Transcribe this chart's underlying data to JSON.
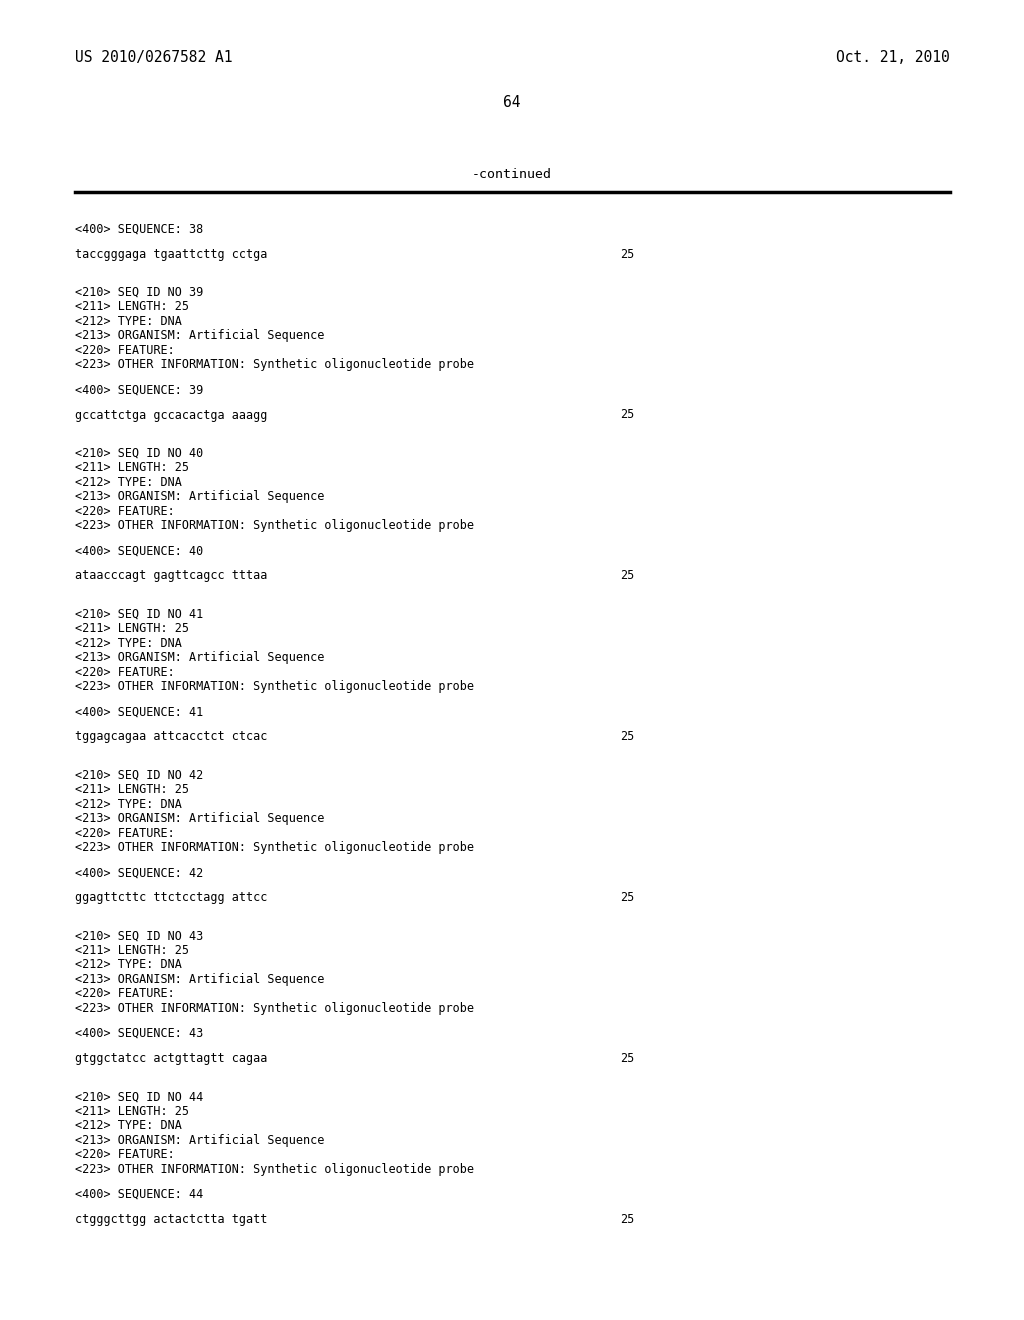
{
  "background_color": "#ffffff",
  "top_left_text": "US 2010/0267582 A1",
  "top_right_text": "Oct. 21, 2010",
  "page_number": "64",
  "continued_text": "-continued",
  "font_size_header": 10.5,
  "font_size_body": 8.5,
  "font_size_page": 10.5,
  "font_size_continued": 9.5,
  "layout": [
    {
      "text": "<400> SEQUENCE: 38",
      "bold": false,
      "num": null,
      "space_before": 0.008,
      "space_after": 0.0
    },
    {
      "text": "taccgggaga tgaattcttg cctga",
      "bold": false,
      "num": "25",
      "space_before": 0.008,
      "space_after": 0.018
    },
    {
      "text": "<210> SEQ ID NO 39",
      "bold": false,
      "num": null,
      "space_before": 0.0,
      "space_after": 0.0
    },
    {
      "text": "<211> LENGTH: 25",
      "bold": false,
      "num": null,
      "space_before": 0.0,
      "space_after": 0.0
    },
    {
      "text": "<212> TYPE: DNA",
      "bold": false,
      "num": null,
      "space_before": 0.0,
      "space_after": 0.0
    },
    {
      "text": "<213> ORGANISM: Artificial Sequence",
      "bold": false,
      "num": null,
      "space_before": 0.0,
      "space_after": 0.0
    },
    {
      "text": "<220> FEATURE:",
      "bold": false,
      "num": null,
      "space_before": 0.0,
      "space_after": 0.0
    },
    {
      "text": "<223> OTHER INFORMATION: Synthetic oligonucleotide probe",
      "bold": false,
      "num": null,
      "space_before": 0.0,
      "space_after": 0.008
    },
    {
      "text": "<400> SEQUENCE: 39",
      "bold": false,
      "num": null,
      "space_before": 0.0,
      "space_after": 0.0
    },
    {
      "text": "gccattctga gccacactga aaagg",
      "bold": false,
      "num": "25",
      "space_before": 0.008,
      "space_after": 0.018
    },
    {
      "text": "<210> SEQ ID NO 40",
      "bold": false,
      "num": null,
      "space_before": 0.0,
      "space_after": 0.0
    },
    {
      "text": "<211> LENGTH: 25",
      "bold": false,
      "num": null,
      "space_before": 0.0,
      "space_after": 0.0
    },
    {
      "text": "<212> TYPE: DNA",
      "bold": false,
      "num": null,
      "space_before": 0.0,
      "space_after": 0.0
    },
    {
      "text": "<213> ORGANISM: Artificial Sequence",
      "bold": false,
      "num": null,
      "space_before": 0.0,
      "space_after": 0.0
    },
    {
      "text": "<220> FEATURE:",
      "bold": false,
      "num": null,
      "space_before": 0.0,
      "space_after": 0.0
    },
    {
      "text": "<223> OTHER INFORMATION: Synthetic oligonucleotide probe",
      "bold": false,
      "num": null,
      "space_before": 0.0,
      "space_after": 0.008
    },
    {
      "text": "<400> SEQUENCE: 40",
      "bold": false,
      "num": null,
      "space_before": 0.0,
      "space_after": 0.0
    },
    {
      "text": "ataacccagt gagttcagcc tttaa",
      "bold": false,
      "num": "25",
      "space_before": 0.008,
      "space_after": 0.018
    },
    {
      "text": "<210> SEQ ID NO 41",
      "bold": false,
      "num": null,
      "space_before": 0.0,
      "space_after": 0.0
    },
    {
      "text": "<211> LENGTH: 25",
      "bold": false,
      "num": null,
      "space_before": 0.0,
      "space_after": 0.0
    },
    {
      "text": "<212> TYPE: DNA",
      "bold": false,
      "num": null,
      "space_before": 0.0,
      "space_after": 0.0
    },
    {
      "text": "<213> ORGANISM: Artificial Sequence",
      "bold": false,
      "num": null,
      "space_before": 0.0,
      "space_after": 0.0
    },
    {
      "text": "<220> FEATURE:",
      "bold": false,
      "num": null,
      "space_before": 0.0,
      "space_after": 0.0
    },
    {
      "text": "<223> OTHER INFORMATION: Synthetic oligonucleotide probe",
      "bold": false,
      "num": null,
      "space_before": 0.0,
      "space_after": 0.008
    },
    {
      "text": "<400> SEQUENCE: 41",
      "bold": false,
      "num": null,
      "space_before": 0.0,
      "space_after": 0.0
    },
    {
      "text": "tggagcagaa attcacctct ctcac",
      "bold": false,
      "num": "25",
      "space_before": 0.008,
      "space_after": 0.018
    },
    {
      "text": "<210> SEQ ID NO 42",
      "bold": false,
      "num": null,
      "space_before": 0.0,
      "space_after": 0.0
    },
    {
      "text": "<211> LENGTH: 25",
      "bold": false,
      "num": null,
      "space_before": 0.0,
      "space_after": 0.0
    },
    {
      "text": "<212> TYPE: DNA",
      "bold": false,
      "num": null,
      "space_before": 0.0,
      "space_after": 0.0
    },
    {
      "text": "<213> ORGANISM: Artificial Sequence",
      "bold": false,
      "num": null,
      "space_before": 0.0,
      "space_after": 0.0
    },
    {
      "text": "<220> FEATURE:",
      "bold": false,
      "num": null,
      "space_before": 0.0,
      "space_after": 0.0
    },
    {
      "text": "<223> OTHER INFORMATION: Synthetic oligonucleotide probe",
      "bold": false,
      "num": null,
      "space_before": 0.0,
      "space_after": 0.008
    },
    {
      "text": "<400> SEQUENCE: 42",
      "bold": false,
      "num": null,
      "space_before": 0.0,
      "space_after": 0.0
    },
    {
      "text": "ggagttcttc ttctcctagg attcc",
      "bold": false,
      "num": "25",
      "space_before": 0.008,
      "space_after": 0.018
    },
    {
      "text": "<210> SEQ ID NO 43",
      "bold": false,
      "num": null,
      "space_before": 0.0,
      "space_after": 0.0
    },
    {
      "text": "<211> LENGTH: 25",
      "bold": false,
      "num": null,
      "space_before": 0.0,
      "space_after": 0.0
    },
    {
      "text": "<212> TYPE: DNA",
      "bold": false,
      "num": null,
      "space_before": 0.0,
      "space_after": 0.0
    },
    {
      "text": "<213> ORGANISM: Artificial Sequence",
      "bold": false,
      "num": null,
      "space_before": 0.0,
      "space_after": 0.0
    },
    {
      "text": "<220> FEATURE:",
      "bold": false,
      "num": null,
      "space_before": 0.0,
      "space_after": 0.0
    },
    {
      "text": "<223> OTHER INFORMATION: Synthetic oligonucleotide probe",
      "bold": false,
      "num": null,
      "space_before": 0.0,
      "space_after": 0.008
    },
    {
      "text": "<400> SEQUENCE: 43",
      "bold": false,
      "num": null,
      "space_before": 0.0,
      "space_after": 0.0
    },
    {
      "text": "gtggctatcc actgttagtt cagaa",
      "bold": false,
      "num": "25",
      "space_before": 0.008,
      "space_after": 0.018
    },
    {
      "text": "<210> SEQ ID NO 44",
      "bold": false,
      "num": null,
      "space_before": 0.0,
      "space_after": 0.0
    },
    {
      "text": "<211> LENGTH: 25",
      "bold": false,
      "num": null,
      "space_before": 0.0,
      "space_after": 0.0
    },
    {
      "text": "<212> TYPE: DNA",
      "bold": false,
      "num": null,
      "space_before": 0.0,
      "space_after": 0.0
    },
    {
      "text": "<213> ORGANISM: Artificial Sequence",
      "bold": false,
      "num": null,
      "space_before": 0.0,
      "space_after": 0.0
    },
    {
      "text": "<220> FEATURE:",
      "bold": false,
      "num": null,
      "space_before": 0.0,
      "space_after": 0.0
    },
    {
      "text": "<223> OTHER INFORMATION: Synthetic oligonucleotide probe",
      "bold": false,
      "num": null,
      "space_before": 0.0,
      "space_after": 0.008
    },
    {
      "text": "<400> SEQUENCE: 44",
      "bold": false,
      "num": null,
      "space_before": 0.0,
      "space_after": 0.0
    },
    {
      "text": "ctgggcttgg actactctta tgatt",
      "bold": false,
      "num": "25",
      "space_before": 0.008,
      "space_after": 0.0
    }
  ]
}
